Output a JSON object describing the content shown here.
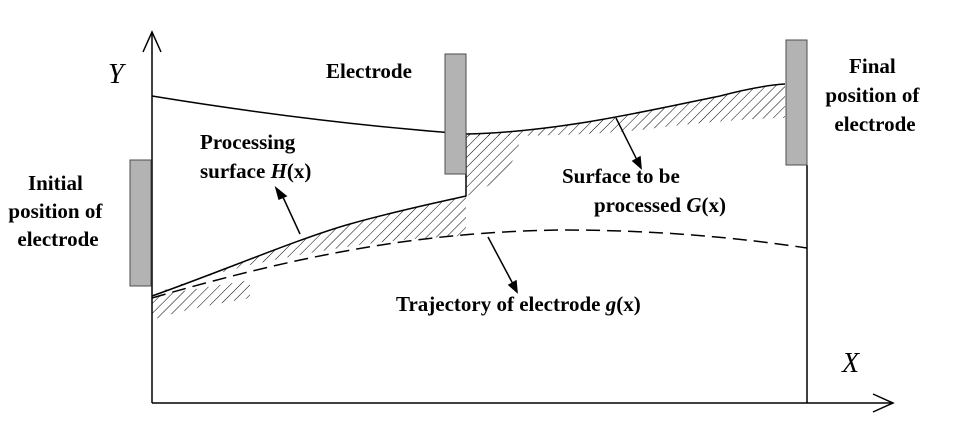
{
  "axes": {
    "x_label": "X",
    "y_label": "Y"
  },
  "labels": {
    "electrode": "Electrode",
    "initial": [
      "Initial",
      "position of",
      "electrode"
    ],
    "final": [
      "Final",
      "position of",
      "electrode"
    ],
    "processing": {
      "line1": "Processing",
      "line2_text": "surface ",
      "func": "H",
      "arg": "(x)"
    },
    "to_process": {
      "line1": "Surface to be",
      "line2_text": "processed ",
      "func": "G",
      "arg": "(x)"
    },
    "trajectory": {
      "text": "Trajectory of electrode ",
      "func": "g",
      "arg": "(x)"
    }
  },
  "colors": {
    "line": "#000000",
    "electrode_fill": "#b3b3b3",
    "electrode_stroke": "#4d4d4d",
    "background": "#ffffff"
  }
}
